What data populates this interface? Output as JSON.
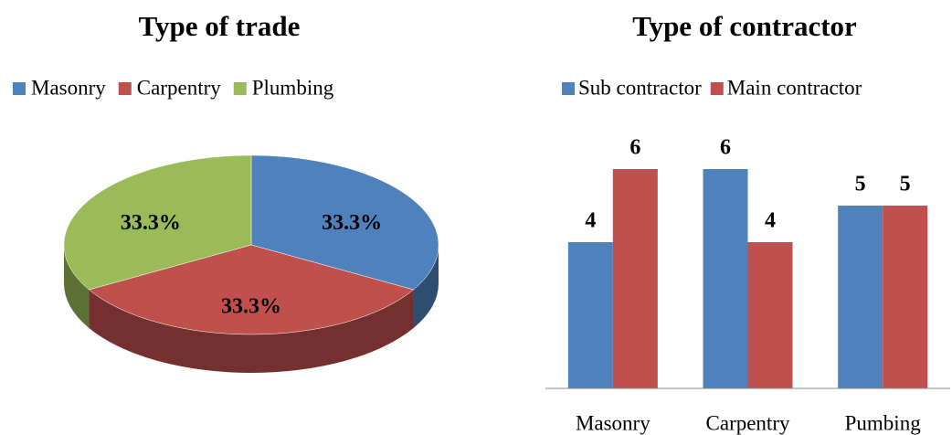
{
  "chart_data": [
    {
      "type": "pie",
      "title": "Type of trade",
      "categories": [
        "Masonry",
        "Carpentry",
        "Plumbing"
      ],
      "values": [
        33.3,
        33.3,
        33.3
      ],
      "value_labels": [
        "33.3%",
        "33.3%",
        "33.3%"
      ],
      "colors": [
        "#4f81bd",
        "#c0504d",
        "#9bbb59"
      ]
    },
    {
      "type": "bar",
      "title": "Type of contractor",
      "categories": [
        "Masonry",
        "Carpentry",
        "Pumbing"
      ],
      "series": [
        {
          "name": "Sub contractor",
          "color": "#4f81bd",
          "values": [
            4,
            6,
            5
          ]
        },
        {
          "name": "Main contractor",
          "color": "#c0504d",
          "values": [
            6,
            4,
            5
          ]
        }
      ],
      "ylim": [
        0,
        7
      ]
    }
  ]
}
